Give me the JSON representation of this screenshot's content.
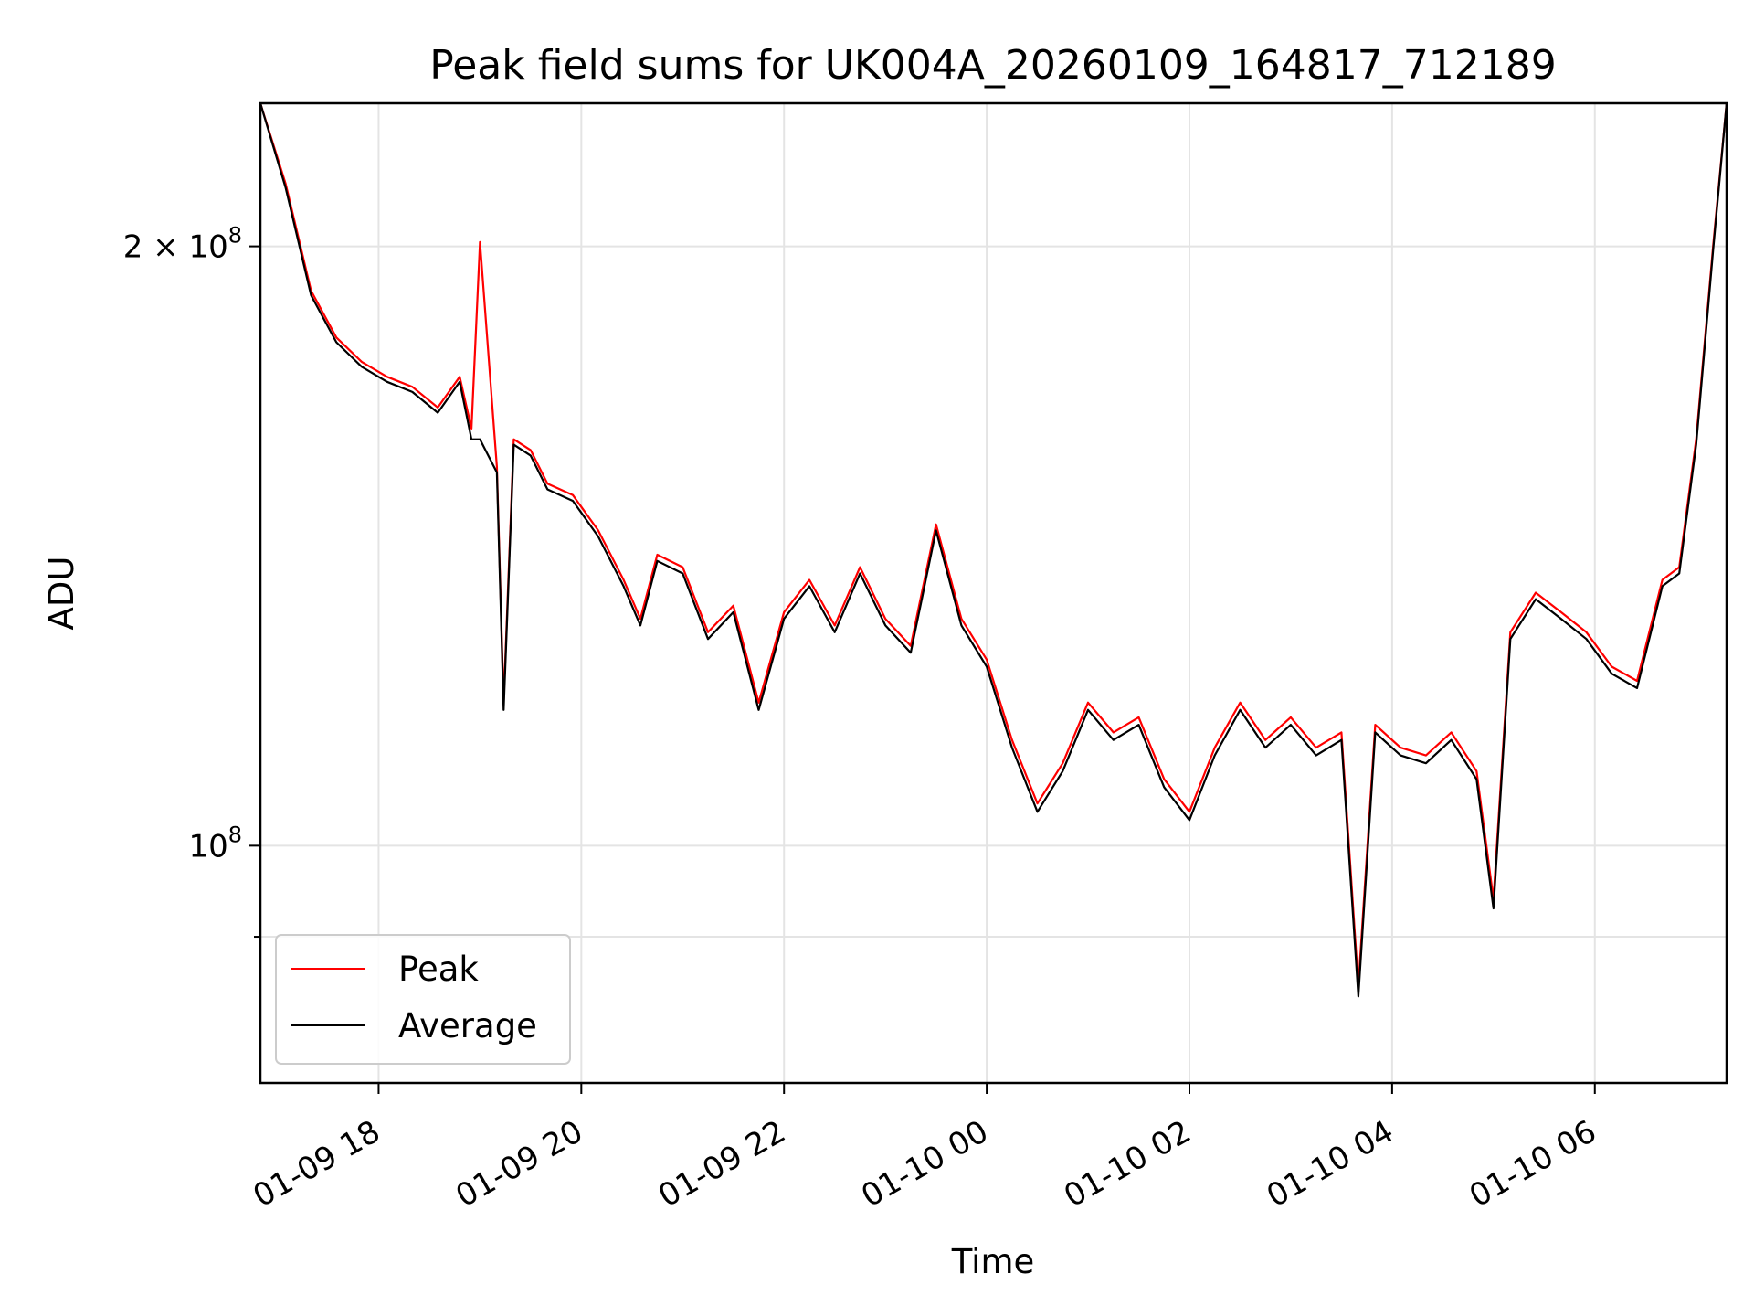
{
  "chart_data": {
    "type": "line",
    "title": "Peak field sums for UK004A_20260109_164817_712189",
    "xlabel": "Time",
    "ylabel": "ADU",
    "yscale": "log",
    "ylim": [
      76000000,
      236000000
    ],
    "xlim": [
      "2026-01-09 16:50",
      "2026-01-10 07:18"
    ],
    "x_ticks": [
      {
        "time": "2026-01-09 18:00",
        "label": "01-09 18"
      },
      {
        "time": "2026-01-09 20:00",
        "label": "01-09 20"
      },
      {
        "time": "2026-01-09 22:00",
        "label": "01-09 22"
      },
      {
        "time": "2026-01-10 00:00",
        "label": "01-10 00"
      },
      {
        "time": "2026-01-10 02:00",
        "label": "01-10 02"
      },
      {
        "time": "2026-01-10 04:00",
        "label": "01-10 04"
      },
      {
        "time": "2026-01-10 06:00",
        "label": "01-10 06"
      }
    ],
    "y_ticks": [
      {
        "value": 200000000,
        "label_base": "2 × 10",
        "label_exp": "8"
      },
      {
        "value": 100000000,
        "label_base": "10",
        "label_exp": "8"
      }
    ],
    "y_minor_ticks": [
      90000000
    ],
    "grid": true,
    "legend_position": "lower-left",
    "series": [
      {
        "name": "Peak",
        "color": "#ff0000",
        "x": [
          "2026-01-09 16:50",
          "2026-01-09 17:05",
          "2026-01-09 17:20",
          "2026-01-09 17:35",
          "2026-01-09 17:50",
          "2026-01-09 18:05",
          "2026-01-09 18:20",
          "2026-01-09 18:35",
          "2026-01-09 18:48",
          "2026-01-09 18:55",
          "2026-01-09 19:00",
          "2026-01-09 19:10",
          "2026-01-09 19:14",
          "2026-01-09 19:20",
          "2026-01-09 19:30",
          "2026-01-09 19:40",
          "2026-01-09 19:55",
          "2026-01-09 20:10",
          "2026-01-09 20:25",
          "2026-01-09 20:35",
          "2026-01-09 20:45",
          "2026-01-09 21:00",
          "2026-01-09 21:15",
          "2026-01-09 21:30",
          "2026-01-09 21:45",
          "2026-01-09 22:00",
          "2026-01-09 22:15",
          "2026-01-09 22:30",
          "2026-01-09 22:45",
          "2026-01-09 23:00",
          "2026-01-09 23:15",
          "2026-01-09 23:30",
          "2026-01-09 23:45",
          "2026-01-10 00:00",
          "2026-01-10 00:15",
          "2026-01-10 00:30",
          "2026-01-10 00:45",
          "2026-01-10 01:00",
          "2026-01-10 01:15",
          "2026-01-10 01:30",
          "2026-01-10 01:45",
          "2026-01-10 02:00",
          "2026-01-10 02:15",
          "2026-01-10 02:30",
          "2026-01-10 02:45",
          "2026-01-10 03:00",
          "2026-01-10 03:15",
          "2026-01-10 03:30",
          "2026-01-10 03:40",
          "2026-01-10 03:50",
          "2026-01-10 04:05",
          "2026-01-10 04:20",
          "2026-01-10 04:35",
          "2026-01-10 04:50",
          "2026-01-10 05:00",
          "2026-01-10 05:10",
          "2026-01-10 05:25",
          "2026-01-10 05:40",
          "2026-01-10 05:55",
          "2026-01-10 06:10",
          "2026-01-10 06:25",
          "2026-01-10 06:40",
          "2026-01-10 06:50",
          "2026-01-10 07:00",
          "2026-01-10 07:10",
          "2026-01-10 07:18"
        ],
        "y": [
          236000000,
          215000000,
          190000000,
          180000000,
          175000000,
          172000000,
          170000000,
          166000000,
          172000000,
          162000000,
          201000000,
          155000000,
          118000000,
          160000000,
          158000000,
          152000000,
          150000000,
          144000000,
          136000000,
          130000000,
          140000000,
          138000000,
          128000000,
          132000000,
          118000000,
          131000000,
          136000000,
          129000000,
          138000000,
          130000000,
          126000000,
          145000000,
          130000000,
          124000000,
          113000000,
          105000000,
          110000000,
          118000000,
          114000000,
          116000000,
          108000000,
          104000000,
          112000000,
          118000000,
          113000000,
          116000000,
          112000000,
          114000000,
          85000000,
          115000000,
          112000000,
          111000000,
          114000000,
          109000000,
          94000000,
          128000000,
          134000000,
          131000000,
          128000000,
          123000000,
          121000000,
          136000000,
          138000000,
          160000000,
          200000000,
          236000000
        ]
      },
      {
        "name": "Average",
        "color": "#000000",
        "x": [
          "2026-01-09 16:50",
          "2026-01-09 17:05",
          "2026-01-09 17:20",
          "2026-01-09 17:35",
          "2026-01-09 17:50",
          "2026-01-09 18:05",
          "2026-01-09 18:20",
          "2026-01-09 18:35",
          "2026-01-09 18:48",
          "2026-01-09 18:55",
          "2026-01-09 19:00",
          "2026-01-09 19:10",
          "2026-01-09 19:14",
          "2026-01-09 19:20",
          "2026-01-09 19:30",
          "2026-01-09 19:40",
          "2026-01-09 19:55",
          "2026-01-09 20:10",
          "2026-01-09 20:25",
          "2026-01-09 20:35",
          "2026-01-09 20:45",
          "2026-01-09 21:00",
          "2026-01-09 21:15",
          "2026-01-09 21:30",
          "2026-01-09 21:45",
          "2026-01-09 22:00",
          "2026-01-09 22:15",
          "2026-01-09 22:30",
          "2026-01-09 22:45",
          "2026-01-09 23:00",
          "2026-01-09 23:15",
          "2026-01-09 23:30",
          "2026-01-09 23:45",
          "2026-01-10 00:00",
          "2026-01-10 00:15",
          "2026-01-10 00:30",
          "2026-01-10 00:45",
          "2026-01-10 01:00",
          "2026-01-10 01:15",
          "2026-01-10 01:30",
          "2026-01-10 01:45",
          "2026-01-10 02:00",
          "2026-01-10 02:15",
          "2026-01-10 02:30",
          "2026-01-10 02:45",
          "2026-01-10 03:00",
          "2026-01-10 03:15",
          "2026-01-10 03:30",
          "2026-01-10 03:40",
          "2026-01-10 03:50",
          "2026-01-10 04:05",
          "2026-01-10 04:20",
          "2026-01-10 04:35",
          "2026-01-10 04:50",
          "2026-01-10 05:00",
          "2026-01-10 05:10",
          "2026-01-10 05:25",
          "2026-01-10 05:40",
          "2026-01-10 05:55",
          "2026-01-10 06:10",
          "2026-01-10 06:25",
          "2026-01-10 06:40",
          "2026-01-10 06:50",
          "2026-01-10 07:00",
          "2026-01-10 07:10",
          "2026-01-10 07:18"
        ],
        "y": [
          236000000,
          214000000,
          189000000,
          179000000,
          174000000,
          171000000,
          169000000,
          165000000,
          171000000,
          160000000,
          160000000,
          154000000,
          117000000,
          159000000,
          157000000,
          151000000,
          149000000,
          143000000,
          135000000,
          129000000,
          139000000,
          137000000,
          127000000,
          131000000,
          117000000,
          130000000,
          135000000,
          128000000,
          137000000,
          129000000,
          125000000,
          144000000,
          129000000,
          123000000,
          112000000,
          104000000,
          109000000,
          117000000,
          113000000,
          115000000,
          107000000,
          103000000,
          111000000,
          117000000,
          112000000,
          115000000,
          111000000,
          113000000,
          84000000,
          114000000,
          111000000,
          110000000,
          113000000,
          108000000,
          93000000,
          127000000,
          133000000,
          130000000,
          127000000,
          122000000,
          120000000,
          135000000,
          137000000,
          159000000,
          199000000,
          236000000
        ]
      }
    ]
  }
}
